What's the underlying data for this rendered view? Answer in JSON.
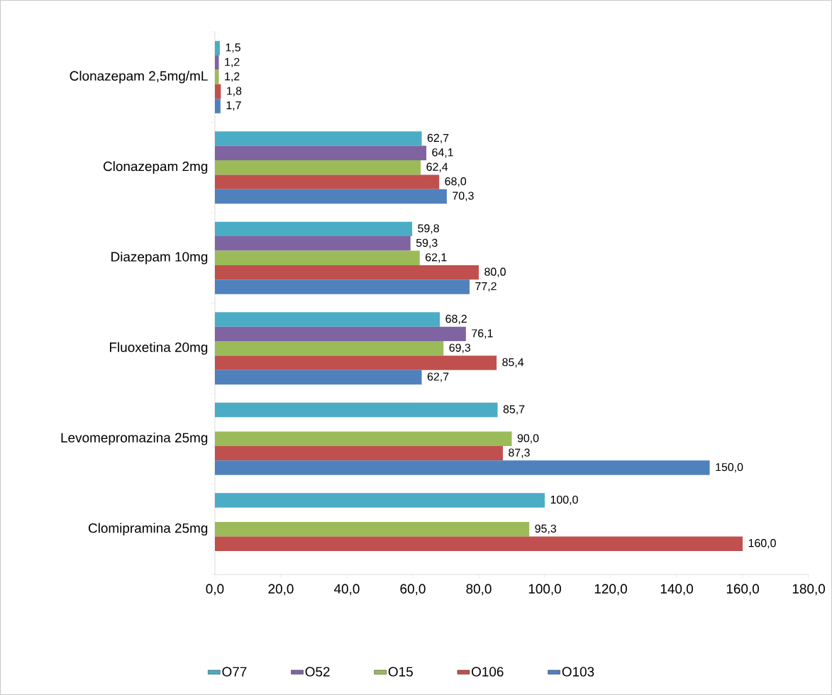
{
  "chart_data": {
    "type": "bar",
    "orientation": "horizontal",
    "categories": [
      "Clonazepam 2,5mg/mL",
      "Clonazepam 2mg",
      "Diazepam 10mg",
      "Fluoxetina 20mg",
      "Levomepromazina 25mg",
      "Clomipramina 25mg"
    ],
    "series": [
      {
        "name": "O77",
        "color": "#4bacc6",
        "values": [
          1.5,
          62.7,
          59.8,
          68.2,
          85.7,
          100.0
        ],
        "value_labels": [
          "1,5",
          "62,7",
          "59,8",
          "68,2",
          "85,7",
          "100,0"
        ]
      },
      {
        "name": "O52",
        "color": "#8064a2",
        "values": [
          1.2,
          64.1,
          59.3,
          76.1,
          null,
          null
        ],
        "value_labels": [
          "1,2",
          "64,1",
          "59,3",
          "76,1",
          null,
          null
        ]
      },
      {
        "name": "O15",
        "color": "#9bbb59",
        "values": [
          1.2,
          62.4,
          62.1,
          69.3,
          90.0,
          95.3
        ],
        "value_labels": [
          "1,2",
          "62,4",
          "62,1",
          "69,3",
          "90,0",
          "95,3"
        ]
      },
      {
        "name": "O106",
        "color": "#c0504d",
        "values": [
          1.8,
          68.0,
          80.0,
          85.4,
          87.3,
          160.0
        ],
        "value_labels": [
          "1,8",
          "68,0",
          "80,0",
          "85,4",
          "87,3",
          "160,0"
        ]
      },
      {
        "name": "O103",
        "color": "#4f81bd",
        "values": [
          1.7,
          70.3,
          77.2,
          62.7,
          150.0,
          null
        ],
        "value_labels": [
          "1,7",
          "70,3",
          "77,2",
          "62,7",
          "150,0",
          null
        ]
      }
    ],
    "xlim": [
      0,
      180
    ],
    "xticks": [
      {
        "value": 0,
        "label": "0,0"
      },
      {
        "value": 20,
        "label": "20,0"
      },
      {
        "value": 40,
        "label": "40,0"
      },
      {
        "value": 60,
        "label": "60,0"
      },
      {
        "value": 80,
        "label": "80,0"
      },
      {
        "value": 100,
        "label": "100,0"
      },
      {
        "value": 120,
        "label": "120,0"
      },
      {
        "value": 140,
        "label": "140,0"
      },
      {
        "value": 160,
        "label": "160,0"
      },
      {
        "value": 180,
        "label": "180,0"
      }
    ],
    "grid": false,
    "legend": "bottom"
  }
}
